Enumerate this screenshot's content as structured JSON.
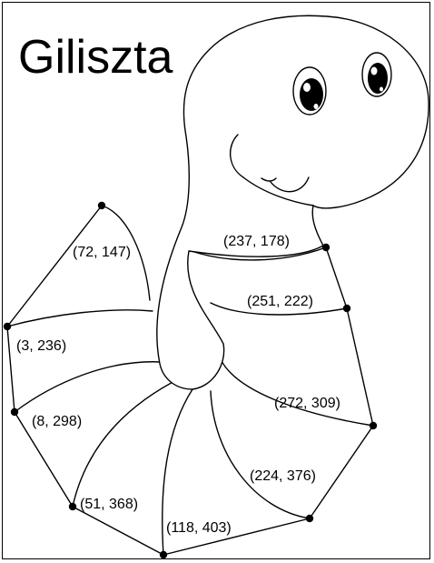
{
  "title": "Giliszta",
  "points": [
    {
      "id": "p72-147",
      "label": "(72, 147)"
    },
    {
      "id": "p3-236",
      "label": "(3, 236)"
    },
    {
      "id": "p8-298",
      "label": "(8, 298)"
    },
    {
      "id": "p51-368",
      "label": "(51, 368)"
    },
    {
      "id": "p118-403",
      "label": "(118, 403)"
    },
    {
      "id": "p224-376",
      "label": "(224, 376)"
    },
    {
      "id": "p272-309",
      "label": "(272, 309)"
    },
    {
      "id": "p251-222",
      "label": "(251, 222)"
    },
    {
      "id": "p237-178",
      "label": "(237, 178)"
    }
  ]
}
